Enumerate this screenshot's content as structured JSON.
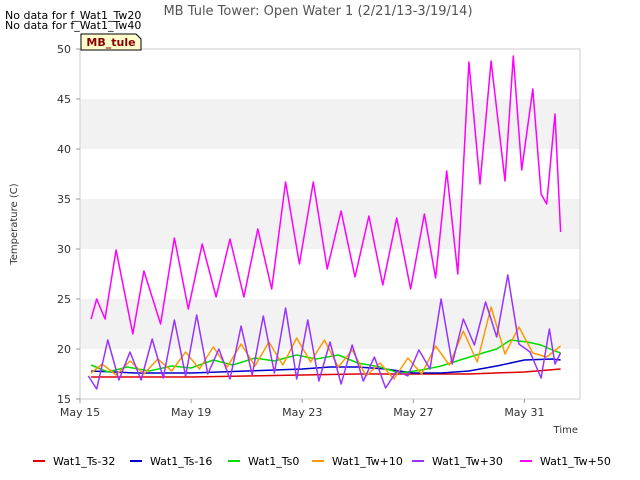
{
  "chart_data": {
    "type": "line",
    "title": "MB Tule Tower: Open Water 1 (2/21/13-3/19/14)",
    "xlabel": "Time",
    "ylabel": "Temperature (C)",
    "x_ticks": [
      "May 15",
      "May 19",
      "May 23",
      "May 27",
      "May 31"
    ],
    "x_range_days": [
      15,
      33
    ],
    "ylim": [
      15,
      50
    ],
    "y_ticks": [
      15,
      20,
      25,
      30,
      35,
      40,
      45,
      50
    ],
    "grid": "alternating horizontal bands",
    "legend_position": "bottom",
    "nodata_notes": [
      "No data for f_Wat1_Tw20",
      "No data for f_Wat1_Tw40"
    ],
    "site_label": "MB_tule",
    "series": [
      {
        "name": "Wat1_Ts-32",
        "color": "#dd0000",
        "x": [
          15.4,
          17,
          19,
          21,
          23,
          25,
          27,
          29,
          31,
          32.3
        ],
        "y": [
          17.2,
          17.2,
          17.2,
          17.3,
          17.4,
          17.5,
          17.5,
          17.5,
          17.7,
          18.0
        ]
      },
      {
        "name": "Wat1_Ts-16",
        "color": "#0000cc",
        "x": [
          15.4,
          17,
          19,
          21,
          23,
          24,
          25,
          26,
          27,
          28,
          29,
          30,
          31,
          32,
          32.3
        ],
        "y": [
          17.8,
          17.6,
          17.6,
          17.8,
          18.0,
          18.2,
          18.2,
          18.0,
          17.6,
          17.6,
          17.8,
          18.3,
          18.9,
          19.0,
          18.9
        ]
      },
      {
        "name": "Wat1_Ts0",
        "color": "#00dd00",
        "x": [
          15.4,
          16,
          16.7,
          17.5,
          18.3,
          19,
          19.8,
          20.5,
          21.3,
          22,
          22.8,
          23.5,
          24.3,
          25,
          25.8,
          26.5,
          27.3,
          28,
          28.8,
          29.5,
          30,
          30.5,
          31.1,
          31.6,
          32,
          32.3
        ],
        "y": [
          18.4,
          17.7,
          18.2,
          17.8,
          18.3,
          18.1,
          18.9,
          18.4,
          19.1,
          18.8,
          19.4,
          19.0,
          19.4,
          18.6,
          18.2,
          17.6,
          17.9,
          18.3,
          19.0,
          19.6,
          20.0,
          20.9,
          20.7,
          20.4,
          19.9,
          19.6
        ]
      },
      {
        "name": "Wat1_Tw+10",
        "color": "#ff9900",
        "x": [
          15.4,
          15.8,
          16.3,
          16.8,
          17.3,
          17.8,
          18.3,
          18.8,
          19.3,
          19.8,
          20.3,
          20.8,
          21.3,
          21.8,
          22.3,
          22.8,
          23.3,
          23.8,
          24.3,
          24.8,
          25.3,
          25.8,
          26.3,
          26.8,
          27.3,
          27.8,
          28.3,
          28.8,
          29.3,
          29.8,
          30.3,
          30.8,
          31.3,
          31.8,
          32.3
        ],
        "y": [
          17.6,
          18.5,
          17.4,
          18.8,
          17.5,
          19.0,
          17.8,
          19.7,
          18.0,
          20.2,
          18.2,
          20.5,
          18.3,
          20.7,
          18.4,
          21.1,
          18.7,
          20.9,
          18.2,
          19.9,
          17.3,
          18.6,
          17.0,
          19.1,
          17.5,
          20.3,
          18.4,
          21.8,
          18.7,
          24.2,
          19.5,
          22.2,
          19.6,
          19.2,
          20.3
        ]
      },
      {
        "name": "Wat1_Tw+30",
        "color": "#9933ff",
        "x": [
          15.3,
          15.6,
          16,
          16.4,
          16.8,
          17.2,
          17.6,
          18.0,
          18.4,
          18.8,
          19.2,
          19.6,
          20.0,
          20.4,
          20.8,
          21.2,
          21.6,
          22.0,
          22.4,
          22.8,
          23.2,
          23.6,
          24.0,
          24.4,
          24.8,
          25.2,
          25.6,
          26.0,
          26.4,
          26.8,
          27.2,
          27.6,
          28.0,
          28.4,
          28.8,
          29.2,
          29.6,
          30.0,
          30.4,
          30.8,
          31.2,
          31.6,
          31.9,
          32.1,
          32.3
        ],
        "y": [
          17.3,
          16.0,
          20.9,
          16.9,
          19.7,
          16.9,
          21.0,
          17.1,
          22.9,
          17.3,
          23.4,
          17.5,
          20.0,
          17.0,
          22.3,
          17.4,
          23.3,
          17.6,
          24.1,
          17.0,
          22.9,
          16.8,
          20.7,
          16.5,
          20.4,
          16.8,
          19.2,
          16.1,
          17.8,
          17.3,
          19.9,
          18.0,
          25.0,
          18.5,
          23.0,
          20.4,
          24.7,
          21.2,
          27.4,
          20.5,
          19.7,
          17.1,
          22.0,
          18.5,
          19.6
        ]
      },
      {
        "name": "Wat1_Tw+50",
        "color": "#ff00ff",
        "x": [
          15.4,
          15.6,
          15.9,
          16.3,
          16.9,
          17.3,
          17.9,
          18.4,
          18.9,
          19.4,
          19.9,
          20.4,
          20.9,
          21.4,
          21.9,
          22.4,
          22.9,
          23.4,
          23.9,
          24.4,
          24.9,
          25.4,
          25.9,
          26.4,
          26.9,
          27.4,
          27.8,
          28.2,
          28.6,
          29.0,
          29.4,
          29.8,
          30.3,
          30.6,
          30.9,
          31.3,
          31.6,
          31.8,
          32.1,
          32.3
        ],
        "y": [
          23.0,
          25.0,
          23.0,
          29.9,
          21.5,
          27.8,
          22.5,
          31.1,
          24.0,
          30.5,
          25.2,
          31.0,
          25.2,
          32.0,
          26.0,
          36.7,
          28.5,
          36.7,
          28.0,
          33.8,
          27.2,
          33.3,
          26.4,
          33.1,
          26.0,
          33.5,
          27.1,
          37.8,
          27.5,
          48.7,
          36.5,
          48.8,
          36.8,
          49.3,
          37.9,
          46.0,
          35.5,
          34.5,
          43.5,
          31.7
        ]
      }
    ]
  }
}
